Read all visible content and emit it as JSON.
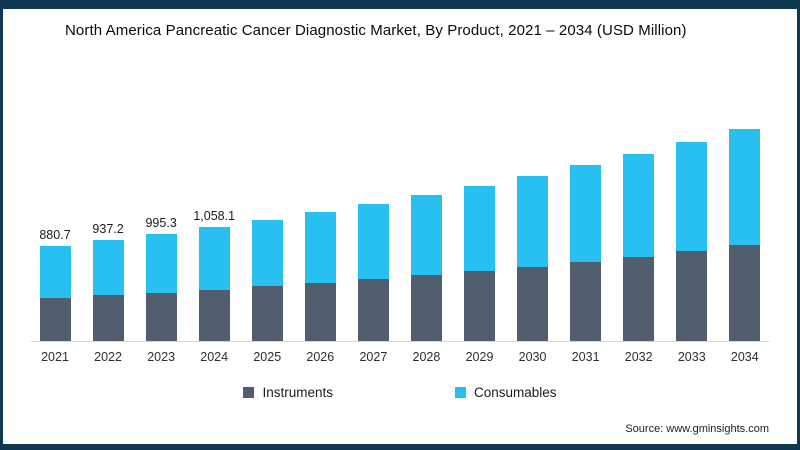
{
  "title": "North America Pancreatic Cancer Diagnostic Market, By Product, 2021 – 2034 (USD Million)",
  "source": "Source: www.gminsights.com",
  "colors": {
    "border": "#0d3a52",
    "instruments": "#505e6e",
    "consumables": "#27c0f0",
    "baseline": "#d2d6da"
  },
  "legend": [
    {
      "label": "Instruments",
      "color": "#505e6e"
    },
    {
      "label": "Consumables",
      "color": "#27c0f0"
    }
  ],
  "chart_data": {
    "type": "bar",
    "stacked": true,
    "title": "North America Pancreatic Cancer Diagnostic Market, By Product, 2021 – 2034 (USD Million)",
    "xlabel": "",
    "ylabel": "USD Million",
    "ylim": [
      0,
      2000
    ],
    "grid": false,
    "legend_position": "bottom",
    "categories": [
      "2021",
      "2022",
      "2023",
      "2024",
      "2025",
      "2026",
      "2027",
      "2028",
      "2029",
      "2030",
      "2031",
      "2032",
      "2033",
      "2034"
    ],
    "series": [
      {
        "name": "Instruments",
        "color": "#505e6e",
        "values": [
          396,
          422,
          448,
          476,
          506,
          538,
          572,
          609,
          648,
          689,
          733,
          781,
          831,
          885
        ]
      },
      {
        "name": "Consumables",
        "color": "#27c0f0",
        "values": [
          484.7,
          515.2,
          547.3,
          582.1,
          618,
          658,
          700,
          744,
          792,
          843,
          897,
          954,
          1016,
          1081
        ]
      }
    ],
    "totals": [
      880.7,
      937.2,
      995.3,
      1058.1,
      1124,
      1196,
      1272,
      1353,
      1440,
      1532,
      1630,
      1735,
      1847,
      1966
    ],
    "data_labels": [
      "880.7",
      "937.2",
      "995.3",
      "1,058.1",
      "",
      "",
      "",
      "",
      "",
      "",
      "",
      "",
      "",
      ""
    ]
  }
}
